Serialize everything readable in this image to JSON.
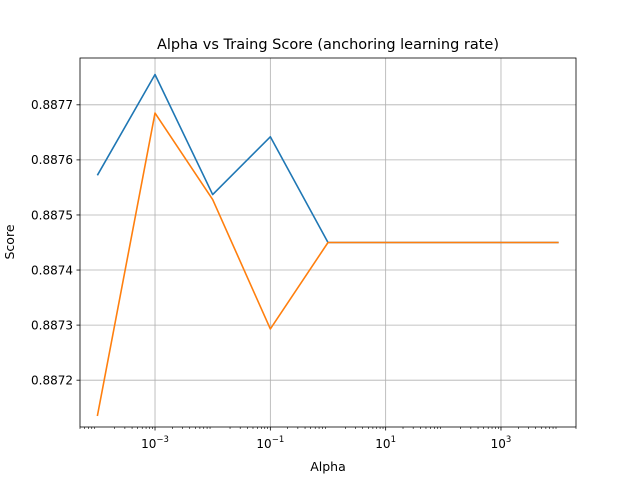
{
  "chart_data": {
    "type": "line",
    "title": "Alpha vs Traing Score (anchoring learning rate)",
    "xlabel": "Alpha",
    "ylabel": "Score",
    "xscale": "log",
    "xlim": [
      5e-05,
      20000
    ],
    "ylim": [
      0.887115,
      0.887785
    ],
    "grid": true,
    "x": [
      0.0001,
      0.001,
      0.01,
      0.1,
      1,
      10,
      100,
      1000,
      10000
    ],
    "x_ticks": [
      {
        "value": 0.001,
        "base": "10",
        "exp": "−3"
      },
      {
        "value": 0.1,
        "base": "10",
        "exp": "−1"
      },
      {
        "value": 10,
        "base": "10",
        "exp": "1"
      },
      {
        "value": 1000,
        "base": "10",
        "exp": "3"
      }
    ],
    "y_ticks": [
      {
        "value": 0.8872,
        "label": "0.8872"
      },
      {
        "value": 0.8873,
        "label": "0.8873"
      },
      {
        "value": 0.8874,
        "label": "0.8874"
      },
      {
        "value": 0.8875,
        "label": "0.8875"
      },
      {
        "value": 0.8876,
        "label": "0.8876"
      },
      {
        "value": 0.8877,
        "label": "0.8877"
      }
    ],
    "series": [
      {
        "color": "#1f77b4",
        "values": [
          0.887572,
          0.887755,
          0.887537,
          0.887642,
          0.88745,
          0.88745,
          0.88745,
          0.88745,
          0.88745
        ]
      },
      {
        "color": "#ff7f0e",
        "values": [
          0.887135,
          0.887685,
          0.887528,
          0.887293,
          0.88745,
          0.88745,
          0.88745,
          0.88745,
          0.88745
        ]
      }
    ]
  }
}
